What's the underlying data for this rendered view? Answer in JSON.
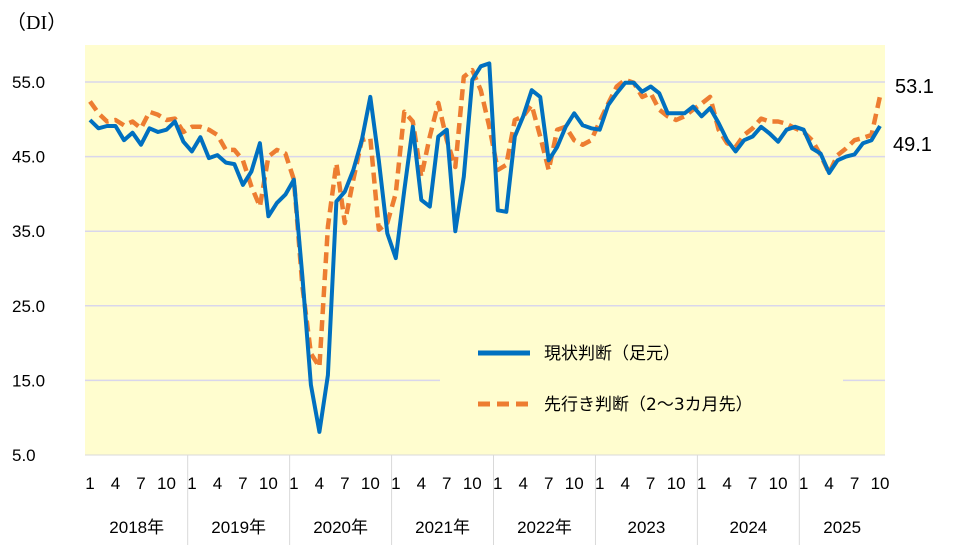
{
  "chart_data": {
    "type": "line",
    "unit_label": "（DI）",
    "ylim": [
      5,
      60
    ],
    "yticks": [
      "55.0",
      "45.0",
      "35.0",
      "25.0",
      "15.0",
      "5.0"
    ],
    "ytick_values": [
      55,
      45,
      35,
      25,
      15,
      5
    ],
    "grid": true,
    "legend_position": "bottom-right",
    "month_labels": [
      "1",
      "4",
      "7",
      "10"
    ],
    "years": [
      {
        "label": "2018年",
        "months": 12
      },
      {
        "label": "2019年",
        "months": 12
      },
      {
        "label": "2020年",
        "months": 12
      },
      {
        "label": "2021年",
        "months": 12
      },
      {
        "label": "2022年",
        "months": 12
      },
      {
        "label": "2023",
        "months": 12
      },
      {
        "label": "2024",
        "months": 12
      },
      {
        "label": "2025",
        "months": 10
      }
    ],
    "series": [
      {
        "name": "現状判断（足元）",
        "color": "#0070C0",
        "style": "solid",
        "end_label": "49.1",
        "values": [
          49.9,
          48.8,
          49.1,
          49.1,
          47.2,
          48.2,
          46.6,
          48.8,
          48.3,
          48.6,
          49.7,
          47.0,
          45.7,
          47.6,
          44.8,
          45.2,
          44.2,
          44.0,
          41.2,
          43.0,
          46.8,
          37.0,
          38.8,
          39.9,
          41.9,
          28.9,
          14.4,
          8.1,
          15.7,
          39.0,
          40.3,
          43.2,
          47.2,
          53.0,
          44.5,
          34.7,
          31.4,
          40.5,
          49.0,
          39.2,
          38.3,
          47.7,
          48.6,
          35.0,
          42.3,
          55.3,
          57.1,
          57.5,
          37.8,
          37.6,
          47.7,
          50.4,
          53.9,
          53.0,
          44.5,
          46.3,
          49.0,
          50.8,
          49.2,
          48.8,
          48.6,
          51.9,
          53.5,
          54.9,
          54.9,
          53.7,
          54.4,
          53.5,
          50.8,
          50.8,
          50.8,
          51.7,
          50.4,
          51.5,
          49.5,
          47.2,
          45.7,
          47.2,
          47.7,
          49.0,
          48.1,
          47.0,
          48.6,
          49.0,
          48.6,
          46.1,
          45.4,
          42.8,
          44.5,
          45.0,
          45.3,
          46.8,
          47.2,
          49.1
        ]
      },
      {
        "name": "先行き判断（2～3カ月先）",
        "color": "#ED7D31",
        "style": "dashed",
        "end_label": "53.1",
        "values": [
          52.4,
          50.8,
          49.7,
          49.9,
          49.2,
          49.7,
          48.8,
          51.0,
          50.6,
          49.9,
          50.1,
          48.3,
          49.0,
          49.0,
          48.6,
          47.9,
          45.9,
          45.9,
          44.5,
          41.0,
          38.3,
          45.0,
          45.9,
          45.4,
          41.9,
          27.6,
          18.6,
          16.8,
          35.6,
          44.1,
          36.1,
          41.9,
          47.2,
          47.5,
          35.2,
          36.1,
          40.1,
          51.0,
          49.7,
          42.3,
          47.7,
          52.2,
          47.2,
          43.6,
          55.7,
          56.6,
          53.9,
          49.0,
          43.2,
          43.9,
          49.9,
          50.4,
          51.9,
          47.7,
          43.2,
          48.6,
          49.0,
          47.2,
          46.6,
          47.2,
          49.7,
          52.1,
          54.4,
          55.3,
          54.9,
          53.0,
          53.5,
          51.3,
          50.4,
          49.9,
          50.4,
          51.3,
          52.1,
          53.0,
          48.6,
          46.8,
          46.3,
          47.9,
          48.8,
          50.1,
          49.7,
          49.7,
          49.4,
          48.8,
          48.3,
          47.2,
          45.2,
          42.8,
          45.2,
          46.1,
          47.2,
          47.5,
          47.9,
          53.1
        ]
      }
    ]
  }
}
